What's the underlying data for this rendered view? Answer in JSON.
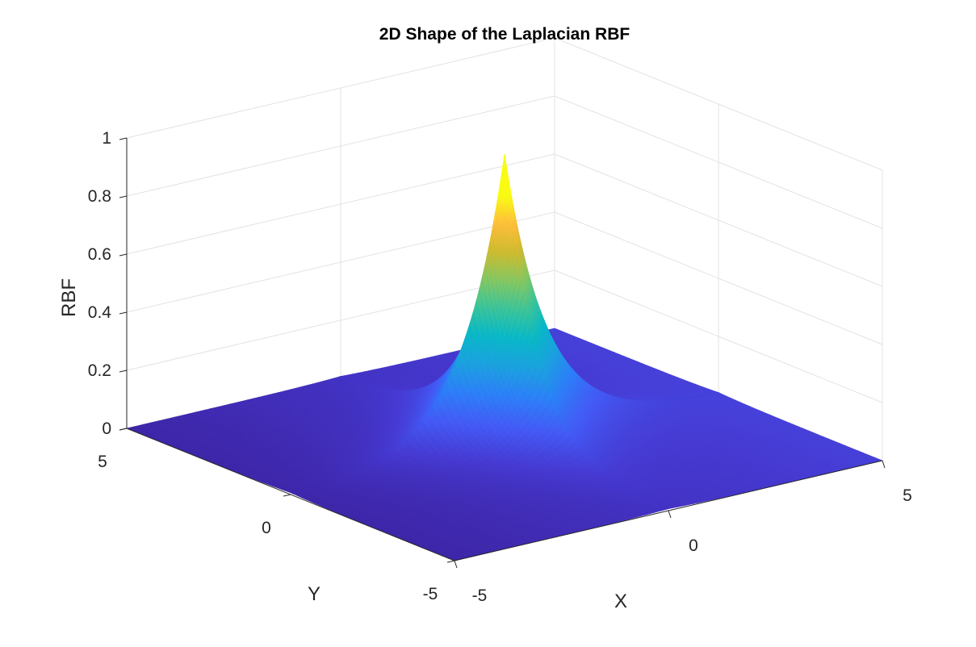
{
  "chart_data": {
    "type": "surface",
    "title": "2D Shape of the Laplacian RBF",
    "xlabel": "X",
    "ylabel": "Y",
    "zlabel": "RBF",
    "xlim": [
      -5,
      5
    ],
    "ylim": [
      -5,
      5
    ],
    "zlim": [
      0,
      1
    ],
    "x_ticks": [
      "-5",
      "0",
      "5"
    ],
    "y_ticks": [
      "-5",
      "0",
      "5"
    ],
    "z_ticks": [
      "0",
      "0.2",
      "0.4",
      "0.6",
      "0.8",
      "1"
    ],
    "function": "z = exp(-(|x| + |y|))",
    "peak": {
      "x": 0,
      "y": 0,
      "z": 1
    },
    "grid": true,
    "colormap": "parula"
  }
}
